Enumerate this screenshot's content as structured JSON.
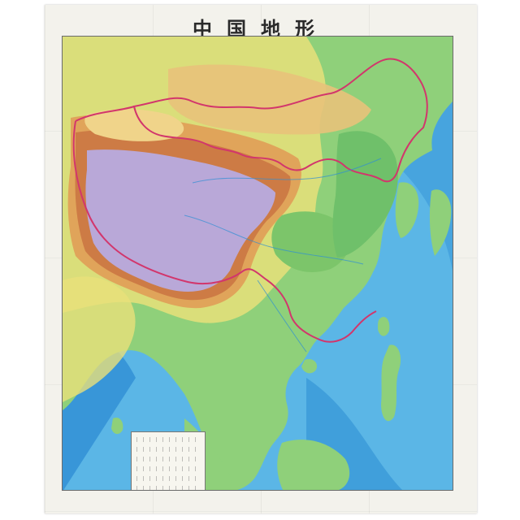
{
  "map": {
    "title": "中国地形",
    "header_left": "",
    "header_right": "",
    "footer_left": "",
    "colors": {
      "sea": "#5bb6e6",
      "deep_sea": "#2f8fd4",
      "lowland": "#8fd07a",
      "hills": "#e8e07a",
      "mountains": "#e0a45a",
      "high_mountains": "#c46a3c",
      "plateau": "#b9a8d8",
      "border": "#d2366c"
    },
    "legend": {
      "icons": [
        "legend-box-icon"
      ]
    }
  }
}
